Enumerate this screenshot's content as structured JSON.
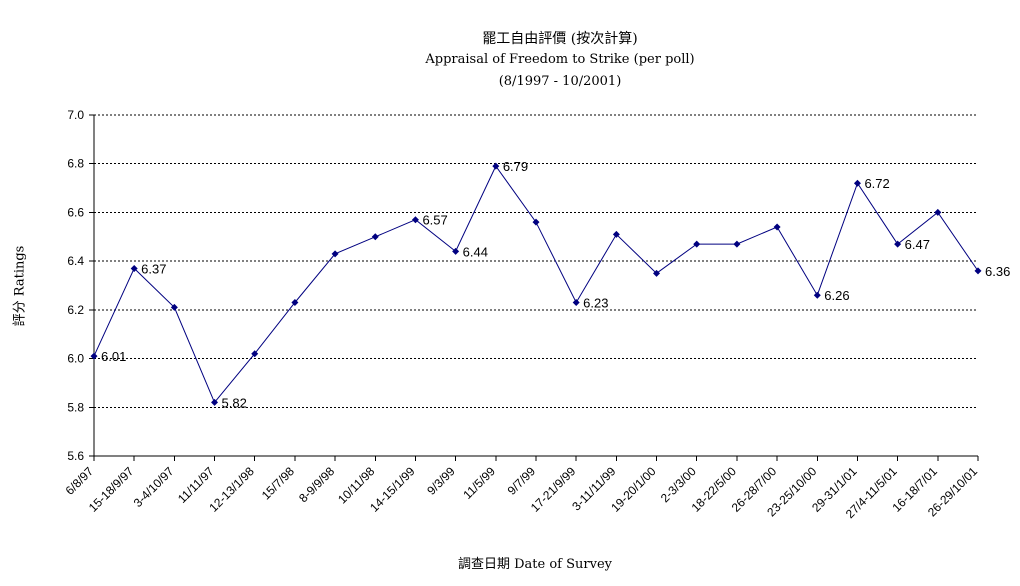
{
  "chart_data": {
    "type": "line",
    "title": "罷工自由評價 (按次計算)",
    "subtitle": "Appraisal of Freedom to Strike (per poll)",
    "period": "(8/1997 - 10/2001)",
    "xlabel": "調查日期 Date of Survey",
    "ylabel": "評分 Ratings",
    "ylim": [
      5.6,
      7.0
    ],
    "yticks": [
      "7.0",
      "6.8",
      "6.6",
      "6.4",
      "6.2",
      "6.0",
      "5.8",
      "5.6"
    ],
    "grid": true,
    "categories": [
      "6/8/97",
      "15-18/9/97",
      "3-4/10/97",
      "11/11/97",
      "12-13/1/98",
      "15/7/98",
      "8-9/9/98",
      "10/11/98",
      "14-15/1/99",
      "9/3/99",
      "11/5/99",
      "9/7/99",
      "17-21/9/99",
      "3-11/11/99",
      "19-20/1/00",
      "2-3/3/00",
      "18-22/5/00",
      "26-28/7/00",
      "23-25/10/00",
      "29-31/1/01",
      "27/4-11/5/01",
      "16-18/7/01",
      "26-29/10/01"
    ],
    "series": [
      {
        "values": [
          6.01,
          6.37,
          6.21,
          5.82,
          6.02,
          6.23,
          6.43,
          6.5,
          6.57,
          6.44,
          6.79,
          6.56,
          6.23,
          6.51,
          6.35,
          6.47,
          6.47,
          6.54,
          6.26,
          6.72,
          6.47,
          6.6,
          6.36
        ],
        "labels": [
          "6.01",
          "6.37",
          "",
          "5.82",
          "",
          "",
          "",
          "",
          "6.57",
          "6.44",
          "6.79",
          "",
          "6.23",
          "",
          "",
          "",
          "",
          "",
          "6.26",
          "6.72",
          "6.47",
          "",
          "6.36"
        ],
        "color": "#000080"
      }
    ]
  }
}
